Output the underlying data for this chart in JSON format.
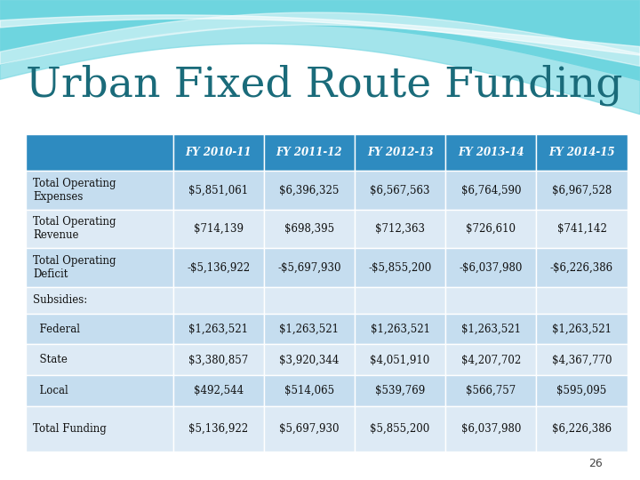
{
  "title": "Urban Fixed Route Funding",
  "title_color": "#1A6B7A",
  "background_top": "#FFFFFF",
  "header_bg": "#2E8BC0",
  "header_text_color": "#FFFFFF",
  "columns": [
    "",
    "FY 2010-11",
    "FY 2011-12",
    "FY 2012-13",
    "FY 2013-14",
    "FY 2014-15"
  ],
  "rows": [
    [
      "Total Operating\nExpenses",
      "$5,851,061",
      "$6,396,325",
      "$6,567,563",
      "$6,764,590",
      "$6,967,528"
    ],
    [
      "Total Operating\nRevenue",
      "$714,139",
      "$698,395",
      "$712,363",
      "$726,610",
      "$741,142"
    ],
    [
      "Total Operating\nDeficit",
      "-$5,136,922",
      "-$5,697,930",
      "-$5,855,200",
      "-$6,037,980",
      "-$6,226,386"
    ],
    [
      "Subsidies:",
      "",
      "",
      "",
      "",
      ""
    ],
    [
      "  Federal",
      "$1,263,521",
      "$1,263,521",
      "$1,263,521",
      "$1,263,521",
      "$1,263,521"
    ],
    [
      "  State",
      "$3,380,857",
      "$3,920,344",
      "$4,051,910",
      "$4,207,702",
      "$4,367,770"
    ],
    [
      "  Local",
      "$492,544",
      "$514,065",
      "$539,769",
      "$566,757",
      "$595,095"
    ],
    [
      "Total Funding",
      "$5,136,922",
      "$5,697,930",
      "$5,855,200",
      "$6,037,980",
      "$6,226,386"
    ]
  ],
  "row_colors": [
    "#C5DDEF",
    "#DDEAF5",
    "#C5DDEF",
    "#DDEAF5",
    "#C5DDEF",
    "#DDEAF5",
    "#C5DDEF",
    "#DDEAF5"
  ],
  "first_col_colors": [
    "#C5DDEF",
    "#DDEAF5",
    "#C5DDEF",
    "#DDEAF5",
    "#C5DDEF",
    "#DDEAF5",
    "#C5DDEF",
    "#DDEAF5"
  ],
  "page_number": "26"
}
